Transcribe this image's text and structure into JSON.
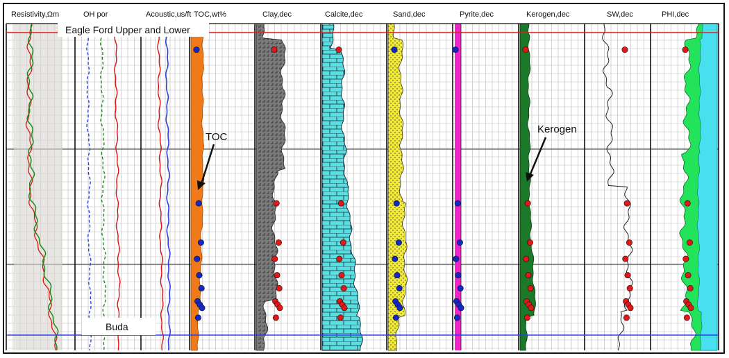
{
  "chart_data": {
    "type": "well-log",
    "tracks": [
      {
        "title": "Resistivity,Ωm"
      },
      {
        "title": "OH por"
      },
      {
        "title": "Acoustic,us/ft"
      },
      {
        "title": "TOC,wt%"
      },
      {
        "title": "Clay,dec"
      },
      {
        "title": "Calcite,dec"
      },
      {
        "title": "Sand,dec"
      },
      {
        "title": "Pyrite,dec"
      },
      {
        "title": "Kerogen,dec"
      },
      {
        "title": "SW,dec"
      },
      {
        "title": "PHI,dec"
      }
    ],
    "formations": {
      "top": "Eagle Ford Upper and Lower",
      "bottom": "Buda"
    },
    "annotations": {
      "toc": "TOC",
      "kerogen": "Kerogen"
    },
    "core_depths": [
      0.08,
      0.55,
      0.67,
      0.72,
      0.77,
      0.81,
      0.85,
      0.86,
      0.87,
      0.9
    ],
    "colors": {
      "toc_fill": "#f07a1a",
      "clay_fill": "#7a7a7a",
      "calcite_fill": "#58e0e0",
      "sand_fill": "#f2ea3a",
      "pyrite_fill": "#f025c8",
      "kerogen_fill": "#1a7a2a",
      "phi_fill": "#22e35a",
      "phi_fill2": "#48e0ee",
      "formation_top_line": "#e0211f",
      "formation_base_line": "#2a3fe0",
      "core_red": "#e01818",
      "core_blue": "#1428c8"
    }
  }
}
